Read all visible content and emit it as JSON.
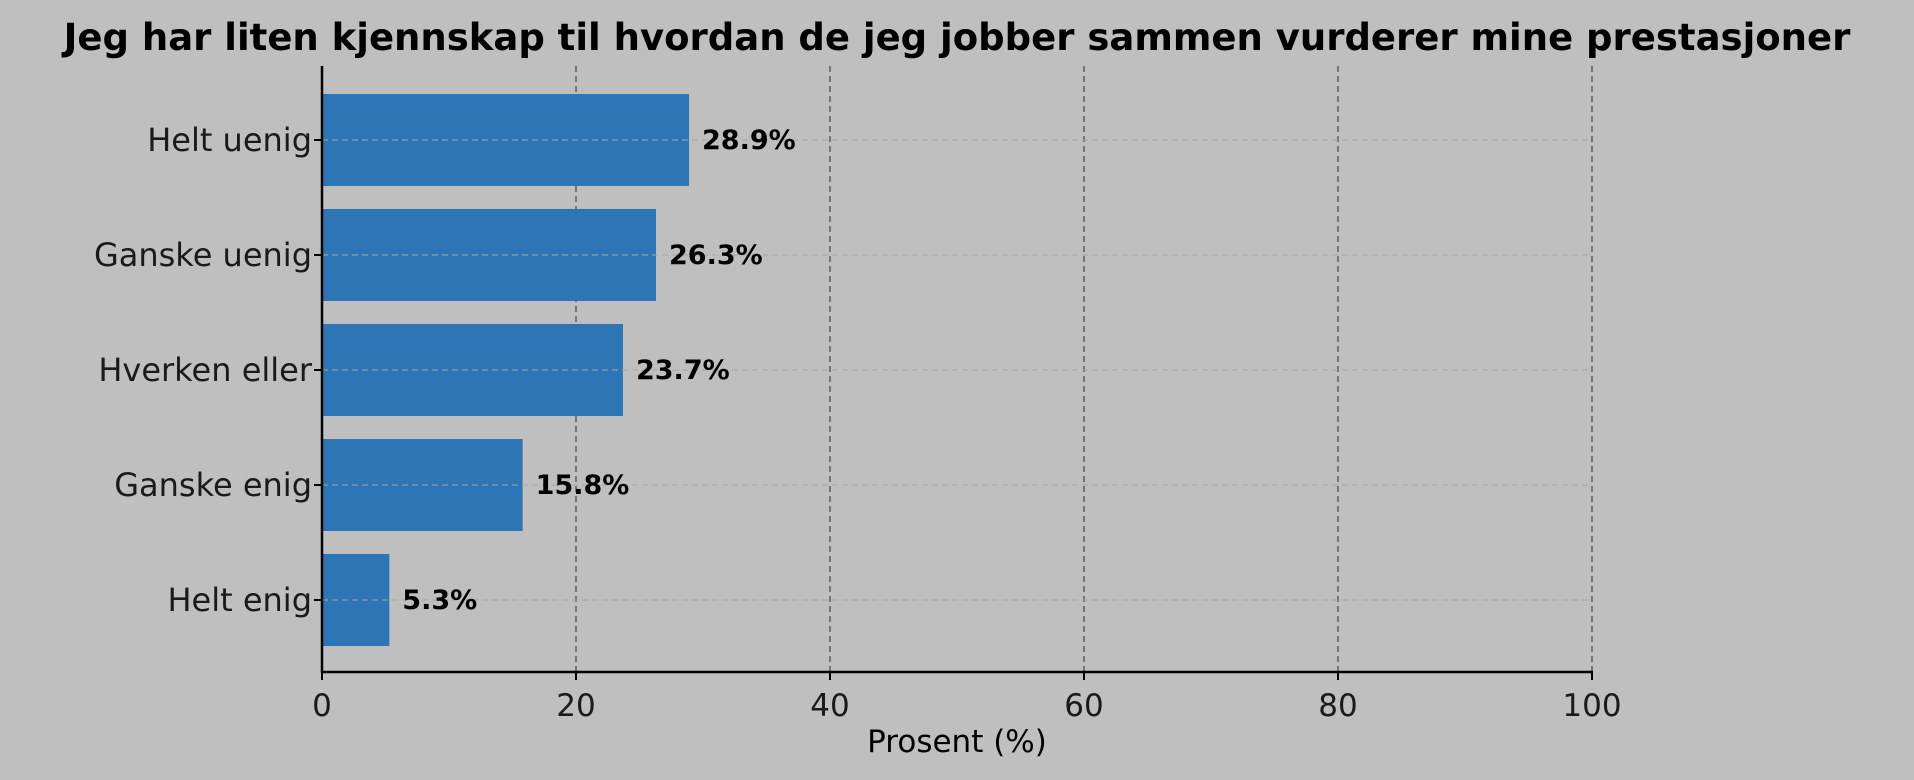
{
  "chart_data": {
    "type": "bar",
    "orientation": "horizontal",
    "title": "Jeg har liten kjennskap til hvordan de jeg jobber sammen vurderer mine prestasjoner",
    "xlabel": "Prosent (%)",
    "ylabel": "",
    "categories": [
      "Helt uenig",
      "Ganske uenig",
      "Hverken eller",
      "Ganske enig",
      "Helt enig"
    ],
    "values": [
      28.9,
      26.3,
      23.7,
      15.8,
      5.3
    ],
    "value_labels": [
      "28.9%",
      "26.3%",
      "23.7%",
      "15.8%",
      "5.3%"
    ],
    "xlim": [
      0,
      100
    ],
    "xticks": [
      "0",
      "20",
      "40",
      "60",
      "80",
      "100"
    ],
    "grid": true,
    "colors": {
      "bar": "#2e75b6",
      "background": "#bfbfbf"
    }
  }
}
